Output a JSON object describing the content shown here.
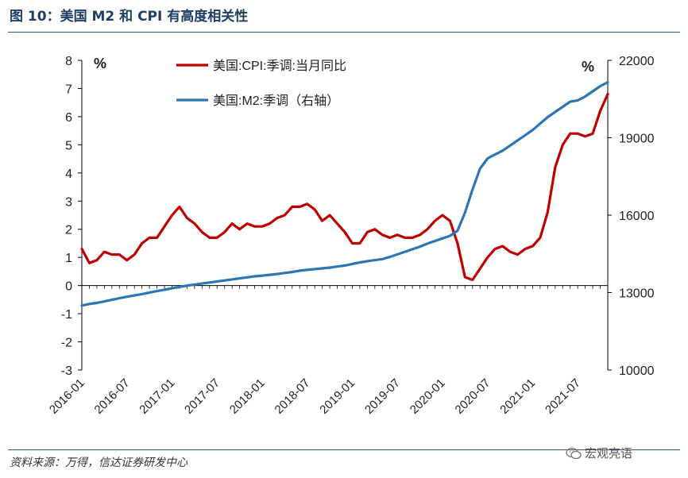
{
  "figure": {
    "title": "图 10：美国 M2 和 CPI 有高度相关性",
    "source": "资料来源：万得，信达证券研发中心",
    "watermark": "宏观亮语",
    "watermark_icon": "wechat-icon"
  },
  "chart_data": {
    "type": "line",
    "left_unit": "%",
    "right_unit": "%",
    "left_axis": {
      "ylim": [
        -3,
        8
      ],
      "ticks": [
        "-3",
        "-2",
        "-1",
        "0",
        "1",
        "2",
        "3",
        "4",
        "5",
        "6",
        "7",
        "8"
      ]
    },
    "right_axis": {
      "ylim": [
        10000,
        22000
      ],
      "ticks": [
        "10000",
        "13000",
        "16000",
        "19000",
        "22000"
      ]
    },
    "x_tick_labels": [
      "2016-01",
      "2016-07",
      "2017-01",
      "2017-07",
      "2018-01",
      "2018-07",
      "2019-01",
      "2019-07",
      "2020-01",
      "2020-07",
      "2021-01",
      "2021-07"
    ],
    "months_count": 71,
    "series": [
      {
        "name": "美国:CPI:季调:当月同比",
        "axis": "left",
        "color": "#c00000",
        "values": [
          1.3,
          0.8,
          0.9,
          1.2,
          1.1,
          1.1,
          0.9,
          1.1,
          1.5,
          1.7,
          1.7,
          2.1,
          2.5,
          2.8,
          2.4,
          2.2,
          1.9,
          1.7,
          1.7,
          1.9,
          2.2,
          2.0,
          2.2,
          2.1,
          2.1,
          2.2,
          2.4,
          2.5,
          2.8,
          2.8,
          2.9,
          2.7,
          2.3,
          2.5,
          2.2,
          1.9,
          1.5,
          1.5,
          1.9,
          2.0,
          1.8,
          1.7,
          1.8,
          1.7,
          1.7,
          1.8,
          2.0,
          2.3,
          2.5,
          2.3,
          1.5,
          0.3,
          0.2,
          0.6,
          1.0,
          1.3,
          1.4,
          1.2,
          1.1,
          1.3,
          1.4,
          1.7,
          2.6,
          4.2,
          5.0,
          5.4,
          5.4,
          5.3,
          5.4,
          6.2,
          6.8
        ]
      },
      {
        "name": "美国:M2:季调（右轴）",
        "axis": "right",
        "color": "#2e75b6",
        "values": [
          12500,
          12560,
          12600,
          12660,
          12720,
          12780,
          12840,
          12890,
          12940,
          13000,
          13060,
          13110,
          13170,
          13220,
          13270,
          13310,
          13350,
          13390,
          13430,
          13470,
          13510,
          13550,
          13590,
          13630,
          13660,
          13690,
          13720,
          13760,
          13800,
          13850,
          13880,
          13910,
          13940,
          13970,
          14010,
          14050,
          14110,
          14170,
          14220,
          14260,
          14300,
          14380,
          14480,
          14580,
          14680,
          14780,
          14900,
          15000,
          15100,
          15200,
          15400,
          16100,
          17000,
          17800,
          18200,
          18350,
          18500,
          18700,
          18900,
          19100,
          19300,
          19550,
          19800,
          20000,
          20200,
          20400,
          20450,
          20600,
          20800,
          21000,
          21150
        ]
      }
    ]
  }
}
